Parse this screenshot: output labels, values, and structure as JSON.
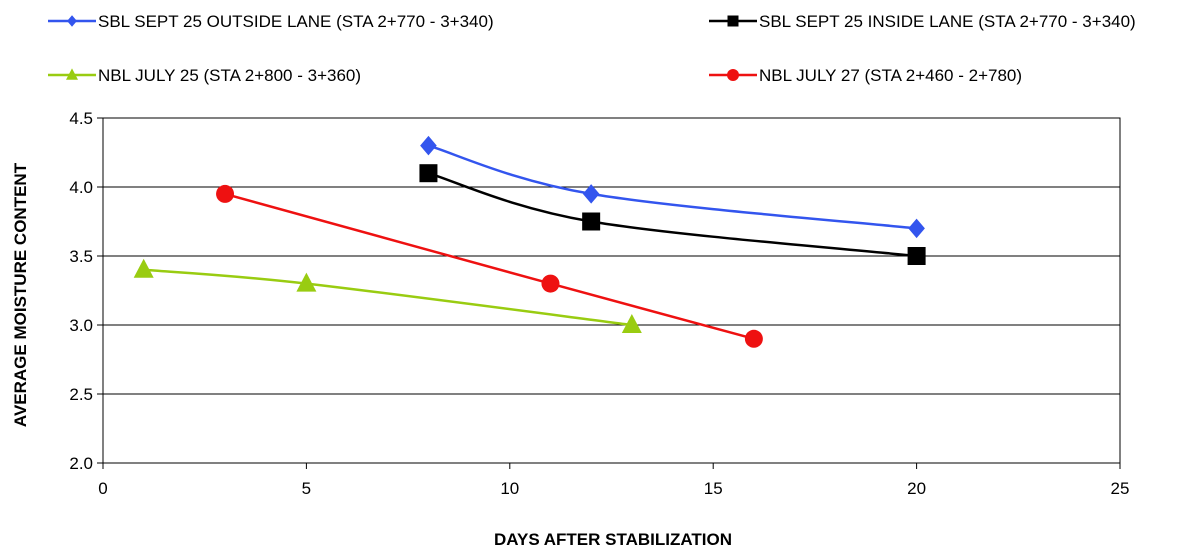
{
  "chart_data": {
    "type": "line",
    "title": "",
    "xlabel": "DAYS AFTER STABILIZATION",
    "ylabel": "AVERAGE MOISTURE CONTENT",
    "xlim": [
      0,
      25
    ],
    "ylim": [
      2.0,
      4.5
    ],
    "x_ticks": [
      "0",
      "5",
      "10",
      "15",
      "20",
      "25"
    ],
    "y_ticks": [
      "2.0",
      "2.5",
      "3.0",
      "3.5",
      "4.0",
      "4.5"
    ],
    "grid": "horizontal",
    "legend_position": "top",
    "series": [
      {
        "name": "SBL SEPT 25 OUTSIDE LANE (STA 2+770 - 3+340)",
        "color": "#3355ee",
        "marker": "diamond",
        "points": [
          [
            8,
            4.3
          ],
          [
            12,
            3.95
          ],
          [
            20,
            3.7
          ]
        ]
      },
      {
        "name": "SBL SEPT 25 INSIDE LANE (STA 2+770 - 3+340)",
        "color": "#000000",
        "marker": "square",
        "points": [
          [
            8,
            4.1
          ],
          [
            12,
            3.75
          ],
          [
            20,
            3.5
          ]
        ]
      },
      {
        "name": "NBL JULY 25 (STA 2+800 - 3+360)",
        "color": "#99cc11",
        "marker": "triangle",
        "points": [
          [
            1,
            3.4
          ],
          [
            5,
            3.3
          ],
          [
            13,
            3.0
          ]
        ]
      },
      {
        "name": "NBL JULY 27 (STA 2+460 - 2+780)",
        "color": "#ee1111",
        "marker": "circle",
        "points": [
          [
            3,
            3.95
          ],
          [
            11,
            3.3
          ],
          [
            16,
            2.9
          ]
        ]
      }
    ]
  }
}
